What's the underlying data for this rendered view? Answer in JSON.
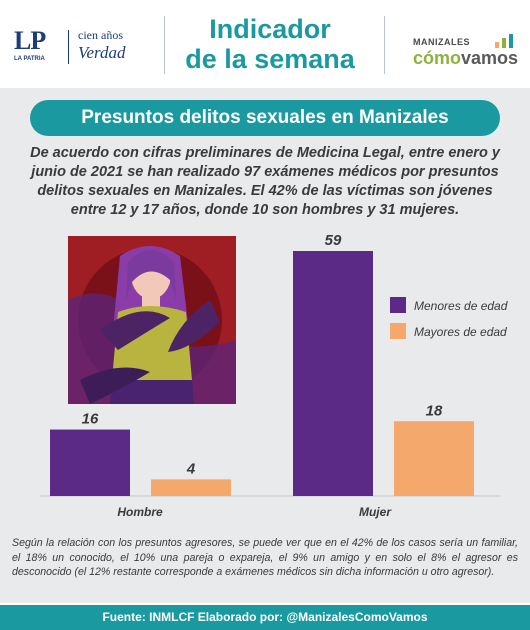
{
  "header": {
    "lp_logo": "LP",
    "lp_sub": "LA PATRIA",
    "cien_anos": "cien años",
    "verdad": "Verdad",
    "title_line1": "Indicador",
    "title_line2": "de la semana",
    "brand_small": "MANIZALES",
    "brand_big_1": "cómo",
    "brand_big_2": "vamos"
  },
  "heading": "Presuntos delitos sexuales en Manizales",
  "intro": "De acuerdo con cifras preliminares de Medicina Legal, entre enero y junio de 2021 se han realizado 97 exámenes médicos por presuntos delitos sexuales en Manizales. El 42% de las víctimas son jóvenes entre 12 y 17 años, donde 10 son hombres y 31 mujeres.",
  "note": "Según la relación con los presuntos agresores, se puede ver que en el 42% de los casos sería un familiar, el 18% un conocido, el 10% una pareja o expareja, el 9% un amigo y en solo el 8% el agresor es desconocido (el 12% restante corresponde a exámenes médicos sin dicha información u otro agresor).",
  "footer": "Fuente: INMLCF Elaborado por: @ManizalesComoVamos",
  "colors": {
    "accent": "#1a9aa0",
    "menores": "#5b2a86",
    "mayores": "#f5a86b",
    "background_band": "#e9eaeb"
  },
  "chart_data": {
    "type": "bar",
    "categories": [
      "Hombre",
      "Mujer"
    ],
    "series": [
      {
        "name": "Menores de edad",
        "values": [
          16,
          59
        ],
        "color": "#5b2a86"
      },
      {
        "name": "Mayores de edad",
        "values": [
          4,
          18
        ],
        "color": "#f5a86b"
      }
    ],
    "ylim": [
      0,
      59
    ],
    "legend": "right"
  }
}
